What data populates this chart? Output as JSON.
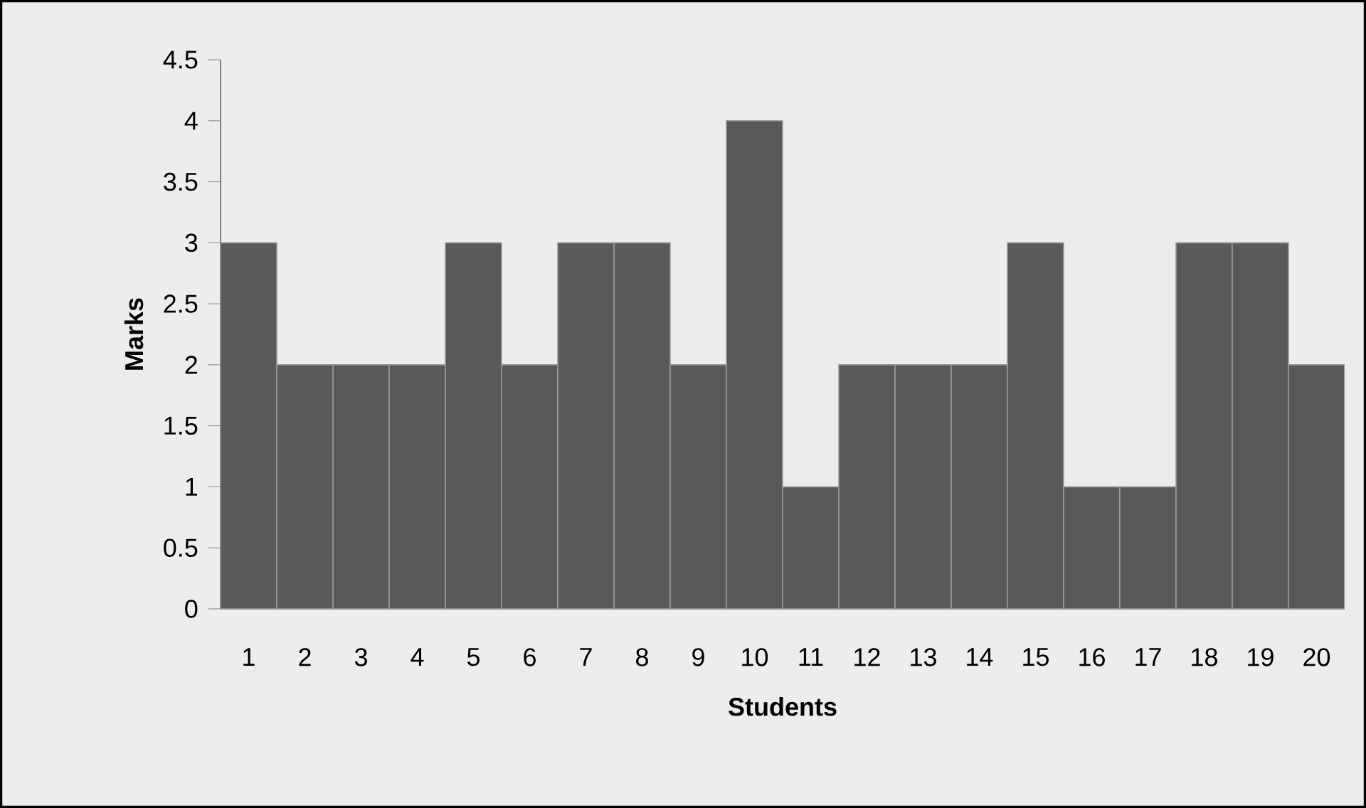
{
  "chart_data": {
    "type": "bar",
    "xlabel": "Students",
    "ylabel": "Marks",
    "categories": [
      "1",
      "2",
      "3",
      "4",
      "5",
      "6",
      "7",
      "8",
      "9",
      "10",
      "11",
      "12",
      "13",
      "14",
      "15",
      "16",
      "17",
      "18",
      "19",
      "20"
    ],
    "values": [
      3,
      2,
      2,
      2,
      3,
      2,
      3,
      3,
      2,
      4,
      1,
      2,
      2,
      2,
      3,
      1,
      1,
      3,
      3,
      2
    ],
    "color": "#595959",
    "ylim": [
      0,
      4.5
    ],
    "yticks": [
      0,
      0.5,
      1,
      1.5,
      2,
      2.5,
      3,
      3.5,
      4,
      4.5
    ],
    "grid": false
  }
}
